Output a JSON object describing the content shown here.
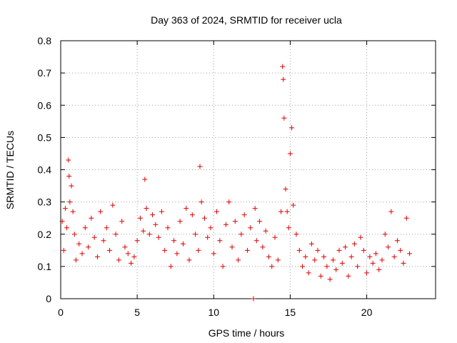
{
  "chart_data": {
    "type": "scatter",
    "title": "Day 363 of 2024, SRMTID for receiver ucla",
    "xlabel": "GPS time / hours",
    "ylabel": "SRMTID / TECUs",
    "xlim": [
      0,
      24.5
    ],
    "ylim": [
      0,
      0.8
    ],
    "xticks": [
      0,
      5,
      10,
      15,
      20
    ],
    "yticks": [
      0,
      0.1,
      0.2,
      0.3,
      0.4,
      0.5,
      0.6,
      0.7,
      0.8
    ],
    "grid": true,
    "legend": "none",
    "marker": "plus",
    "color": "#e00000",
    "series": [
      {
        "name": "ucla",
        "x": [
          0.1,
          0.2,
          0.3,
          0.4,
          0.5,
          0.55,
          0.6,
          0.7,
          0.8,
          0.9,
          1.0,
          1.2,
          1.4,
          1.6,
          1.8,
          2.0,
          2.2,
          2.4,
          2.6,
          2.8,
          3.0,
          3.2,
          3.4,
          3.6,
          3.8,
          4.0,
          4.2,
          4.4,
          4.6,
          4.8,
          5.0,
          5.2,
          5.4,
          5.5,
          5.6,
          5.8,
          6.0,
          6.2,
          6.4,
          6.6,
          6.8,
          7.0,
          7.2,
          7.4,
          7.6,
          7.8,
          8.0,
          8.2,
          8.4,
          8.6,
          8.8,
          9.0,
          9.1,
          9.2,
          9.4,
          9.6,
          9.8,
          10.0,
          10.2,
          10.4,
          10.6,
          10.8,
          11.0,
          11.2,
          11.4,
          11.6,
          11.8,
          12.0,
          12.2,
          12.4,
          12.6,
          12.7,
          12.8,
          13.0,
          13.2,
          13.4,
          13.6,
          13.8,
          14.0,
          14.2,
          14.4,
          14.5,
          14.55,
          14.6,
          14.7,
          14.8,
          14.9,
          15.0,
          15.1,
          15.2,
          15.4,
          15.6,
          15.8,
          16.0,
          16.2,
          16.4,
          16.6,
          16.8,
          17.0,
          17.2,
          17.4,
          17.6,
          17.8,
          18.0,
          18.2,
          18.4,
          18.6,
          18.8,
          19.0,
          19.2,
          19.4,
          19.6,
          19.8,
          20.0,
          20.2,
          20.4,
          20.6,
          20.8,
          21.0,
          21.2,
          21.4,
          21.6,
          21.8,
          22.0,
          22.2,
          22.4,
          22.6,
          22.8
        ],
        "y": [
          0.24,
          0.15,
          0.28,
          0.22,
          0.43,
          0.38,
          0.3,
          0.35,
          0.27,
          0.2,
          0.12,
          0.17,
          0.14,
          0.22,
          0.16,
          0.25,
          0.19,
          0.13,
          0.27,
          0.18,
          0.22,
          0.15,
          0.29,
          0.2,
          0.12,
          0.24,
          0.16,
          0.14,
          0.11,
          0.13,
          0.18,
          0.25,
          0.21,
          0.37,
          0.28,
          0.2,
          0.26,
          0.23,
          0.19,
          0.27,
          0.15,
          0.22,
          0.1,
          0.18,
          0.14,
          0.24,
          0.17,
          0.28,
          0.12,
          0.26,
          0.2,
          0.15,
          0.41,
          0.3,
          0.25,
          0.19,
          0.22,
          0.14,
          0.27,
          0.18,
          0.1,
          0.23,
          0.3,
          0.16,
          0.24,
          0.12,
          0.2,
          0.26,
          0.15,
          0.22,
          0.0,
          0.28,
          0.18,
          0.24,
          0.16,
          0.21,
          0.13,
          0.1,
          0.19,
          0.12,
          0.27,
          0.72,
          0.68,
          0.56,
          0.34,
          0.27,
          0.22,
          0.45,
          0.53,
          0.29,
          0.2,
          0.15,
          0.1,
          0.13,
          0.08,
          0.17,
          0.12,
          0.15,
          0.07,
          0.13,
          0.1,
          0.06,
          0.12,
          0.09,
          0.15,
          0.11,
          0.16,
          0.07,
          0.13,
          0.17,
          0.1,
          0.19,
          0.15,
          0.08,
          0.13,
          0.11,
          0.14,
          0.09,
          0.12,
          0.2,
          0.16,
          0.27,
          0.13,
          0.18,
          0.15,
          0.11,
          0.25,
          0.14
        ]
      }
    ]
  }
}
